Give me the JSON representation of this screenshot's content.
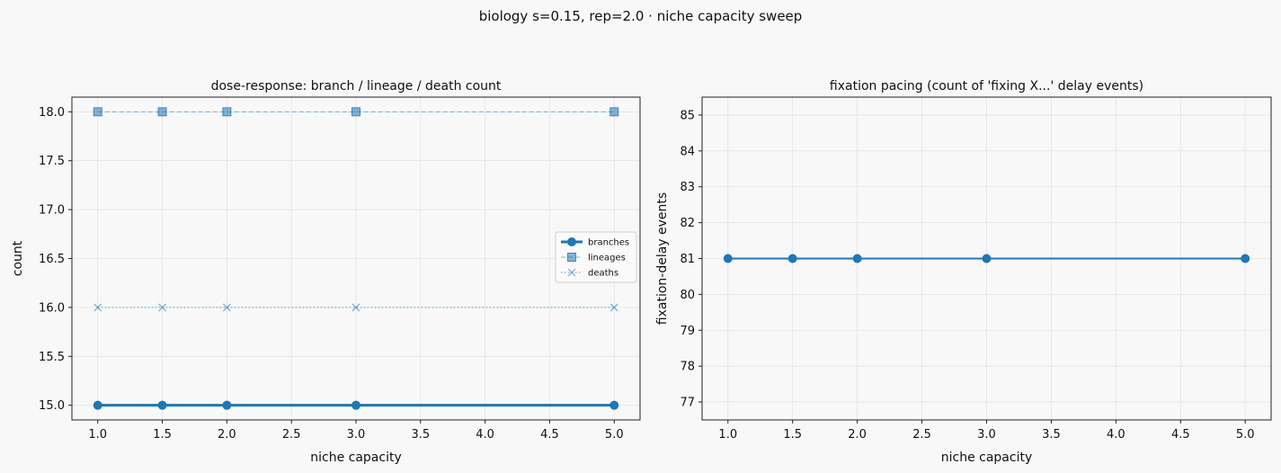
{
  "suptitle": "biology s=0.15, rep=2.0 · niche capacity sweep",
  "colors": {
    "primary": "#1f77b4",
    "grid": "#e3e3e3",
    "background": "#f8f8f8"
  },
  "chart_data": [
    {
      "type": "line",
      "title": "dose-response: branch / lineage / death count",
      "xlabel": "niche capacity",
      "ylabel": "count",
      "x": [
        1.0,
        1.5,
        2.0,
        3.0,
        5.0
      ],
      "xlim": [
        0.8,
        5.2
      ],
      "ylim": [
        14.85,
        18.15
      ],
      "xticks": [
        "1.0",
        "1.5",
        "2.0",
        "2.5",
        "3.0",
        "3.5",
        "4.0",
        "4.5",
        "5.0"
      ],
      "yticks": [
        "15.0",
        "15.5",
        "16.0",
        "16.5",
        "17.0",
        "17.5",
        "18.0"
      ],
      "grid": true,
      "legend": "center-right",
      "series": [
        {
          "name": "branches",
          "values": [
            15,
            15,
            15,
            15,
            15
          ],
          "marker": "circle",
          "style": "solid-thick"
        },
        {
          "name": "lineages",
          "values": [
            18,
            18,
            18,
            18,
            18
          ],
          "marker": "square",
          "style": "dashed"
        },
        {
          "name": "deaths",
          "values": [
            16,
            16,
            16,
            16,
            16
          ],
          "marker": "x",
          "style": "dotted"
        }
      ]
    },
    {
      "type": "line",
      "title": "fixation pacing (count of 'fixing X...' delay events)",
      "xlabel": "niche capacity",
      "ylabel": "fixation-delay events",
      "x": [
        1.0,
        1.5,
        2.0,
        3.0,
        5.0
      ],
      "xlim": [
        0.8,
        5.2
      ],
      "ylim": [
        76.5,
        85.5
      ],
      "xticks": [
        "1.0",
        "1.5",
        "2.0",
        "2.5",
        "3.0",
        "3.5",
        "4.0",
        "4.5",
        "5.0"
      ],
      "yticks": [
        "77",
        "78",
        "79",
        "80",
        "81",
        "82",
        "83",
        "84",
        "85"
      ],
      "grid": true,
      "series": [
        {
          "values": [
            81,
            81,
            81,
            81,
            81
          ],
          "marker": "circle",
          "style": "solid"
        }
      ]
    }
  ]
}
